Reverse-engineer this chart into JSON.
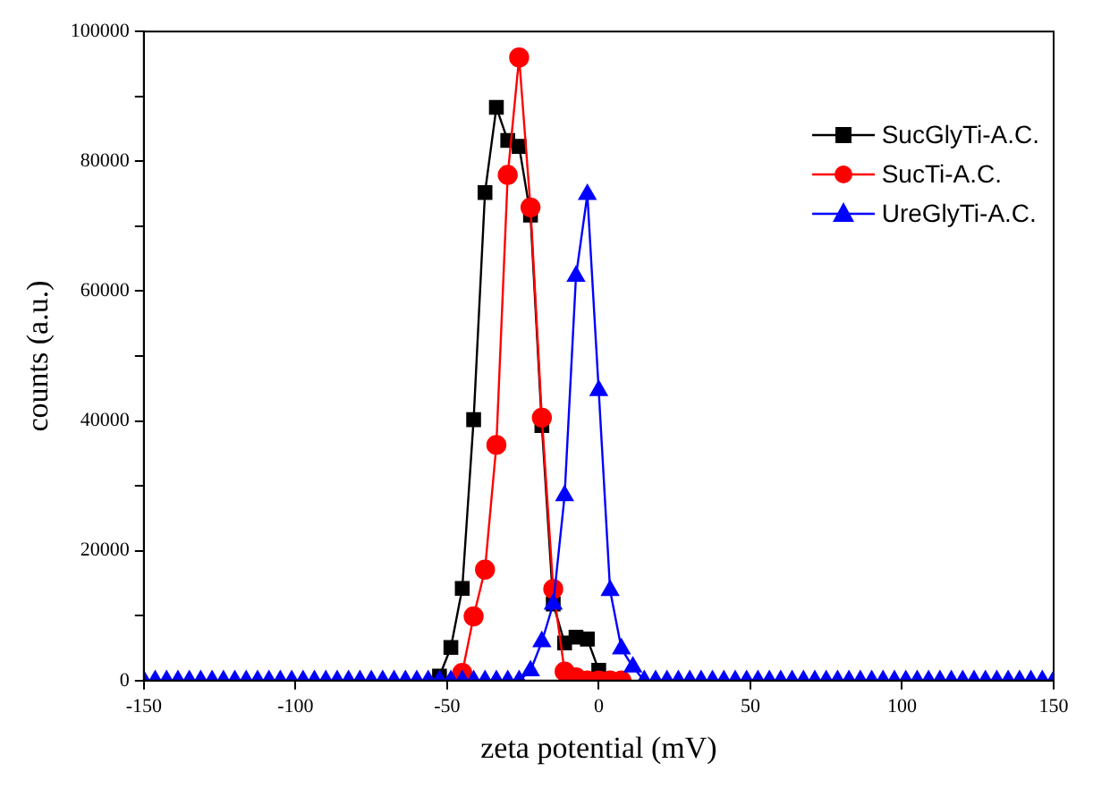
{
  "chart_data": {
    "type": "line",
    "xlabel": "zeta potential (mV)",
    "ylabel": "counts (a.u.)",
    "x": [
      -150,
      -146.25,
      -142.5,
      -138.75,
      -135,
      -131.25,
      -127.5,
      -123.75,
      -120,
      -116.25,
      -112.5,
      -108.75,
      -105,
      -101.25,
      -97.5,
      -93.75,
      -90,
      -86.25,
      -82.5,
      -78.75,
      -75,
      -71.25,
      -67.5,
      -63.75,
      -60,
      -56.25,
      -52.5,
      -48.75,
      -45,
      -41.25,
      -37.5,
      -33.75,
      -30,
      -26.25,
      -22.5,
      -18.75,
      -15,
      -11.25,
      -7.5,
      -3.75,
      0,
      3.75,
      7.5,
      11.25,
      15,
      18.75,
      22.5,
      26.25,
      30,
      33.75,
      37.5,
      41.25,
      45,
      48.75,
      52.5,
      56.25,
      60,
      63.75,
      67.5,
      71.25,
      75,
      78.75,
      82.5,
      86.25,
      90,
      93.75,
      97.5,
      101.25,
      105,
      108.75,
      112.5,
      116.25,
      120,
      123.75,
      127.5,
      131.25,
      135,
      138.75,
      142.5,
      146.25,
      150
    ],
    "series": [
      {
        "name": "SucGlyTi-A.C.",
        "color": "#000000",
        "marker": "square",
        "values": [
          null,
          null,
          null,
          null,
          null,
          null,
          null,
          null,
          null,
          null,
          null,
          null,
          null,
          null,
          null,
          null,
          null,
          null,
          null,
          null,
          null,
          null,
          null,
          null,
          null,
          null,
          700,
          5100,
          14200,
          40200,
          75200,
          88300,
          83200,
          82300,
          71700,
          39300,
          11800,
          5800,
          6700,
          6400,
          1600,
          null,
          null,
          null,
          null,
          null,
          null,
          null,
          null,
          null,
          null,
          null,
          null,
          null,
          null,
          null,
          null,
          null,
          null,
          null,
          null,
          null,
          null,
          null,
          null,
          null,
          null,
          null,
          null,
          null,
          null,
          null,
          null,
          null,
          null,
          null,
          null,
          null,
          null,
          null,
          null
        ]
      },
      {
        "name": "SucTi-A.C.",
        "color": "#ff0000",
        "marker": "circle",
        "values": [
          null,
          null,
          null,
          null,
          null,
          null,
          null,
          null,
          null,
          null,
          null,
          null,
          null,
          null,
          null,
          null,
          null,
          null,
          null,
          null,
          null,
          null,
          null,
          null,
          null,
          null,
          null,
          null,
          1200,
          9900,
          17100,
          36300,
          77900,
          96000,
          72900,
          40500,
          14100,
          1400,
          500,
          0,
          0,
          0,
          0,
          null,
          null,
          null,
          null,
          null,
          null,
          null,
          null,
          null,
          null,
          null,
          null,
          null,
          null,
          null,
          null,
          null,
          null,
          null,
          null,
          null,
          null,
          null,
          null,
          null,
          null,
          null,
          null,
          null,
          null,
          null,
          null,
          null,
          null,
          null,
          null,
          null,
          null
        ]
      },
      {
        "name": "UreGlyTi-A.C.",
        "color": "#0000ff",
        "marker": "triangle",
        "values": [
          0,
          0,
          0,
          0,
          0,
          0,
          0,
          0,
          0,
          0,
          0,
          0,
          0,
          0,
          0,
          0,
          0,
          0,
          0,
          0,
          0,
          0,
          0,
          0,
          0,
          0,
          0,
          0,
          0,
          0,
          0,
          0,
          0,
          0,
          1500,
          6000,
          11800,
          28500,
          62300,
          74900,
          44700,
          13900,
          4900,
          2100,
          0,
          0,
          0,
          0,
          0,
          0,
          0,
          0,
          0,
          0,
          0,
          0,
          0,
          0,
          0,
          0,
          0,
          0,
          0,
          0,
          0,
          0,
          0,
          0,
          0,
          0,
          0,
          0,
          0,
          0,
          0,
          0,
          0,
          0,
          0,
          0,
          0
        ]
      }
    ],
    "xlim": [
      -150,
      150
    ],
    "xticks": [
      -150,
      -100,
      -50,
      0,
      50,
      100,
      150
    ],
    "ylim": [
      0,
      100000
    ],
    "yticks": [
      0,
      {
        "value": 10000,
        "label": null
      },
      20000,
      {
        "value": 30000,
        "label": null
      },
      40000,
      {
        "value": 50000,
        "label": null
      },
      60000,
      {
        "value": 70000,
        "label": null
      },
      80000,
      {
        "value": 90000,
        "label": null
      },
      100000
    ],
    "grid": false,
    "legend": "top right"
  }
}
